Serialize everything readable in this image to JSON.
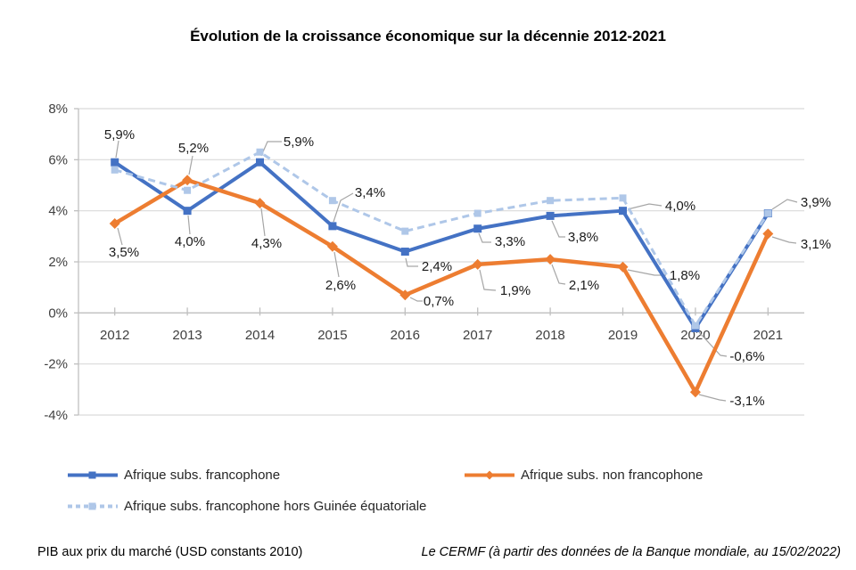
{
  "title": "Évolution de la croissance économique sur la décennie 2012-2021",
  "footnotes": {
    "left": "PIB aux prix du marché (USD constants 2010)",
    "right": "Le CERMF (à partir des données de la Banque mondiale, au 15/02/2022)"
  },
  "chart_data": {
    "type": "line",
    "title": "Évolution de la croissance économique sur la décennie 2012-2021",
    "categories": [
      "2012",
      "2013",
      "2014",
      "2015",
      "2016",
      "2017",
      "2018",
      "2019",
      "2020",
      "2021"
    ],
    "series": [
      {
        "name": "Afrique subs. francophone",
        "color": "#4472C4",
        "line_style": "solid",
        "marker": "square",
        "labeled": true,
        "values": [
          5.9,
          4.0,
          5.9,
          3.4,
          2.4,
          3.3,
          3.8,
          4.0,
          -0.6,
          3.9
        ]
      },
      {
        "name": "Afrique subs. non francophone",
        "color": "#ED7D31",
        "line_style": "solid",
        "marker": "diamond",
        "labeled": true,
        "values": [
          3.5,
          5.2,
          4.3,
          2.6,
          0.7,
          1.9,
          2.1,
          1.8,
          -3.1,
          3.1
        ]
      },
      {
        "name": "Afrique subs. francophone hors Guinée équatoriale",
        "color": "#AFC7E8",
        "line_style": "dashed",
        "marker": "square",
        "labeled": false,
        "values": [
          5.6,
          4.8,
          6.3,
          4.4,
          3.2,
          3.9,
          4.4,
          4.5,
          -0.5,
          3.9
        ]
      }
    ],
    "xlabel": "",
    "ylabel": "",
    "ylim": [
      -4,
      8
    ],
    "ytick_step": 2,
    "ytick_suffix": "%",
    "decimal_separator": ",",
    "label_format": "one_decimal_percent",
    "grid": true,
    "legend_position": "bottom",
    "colors": {
      "gridline": "#D9D9D9",
      "axis": "#BFBFBF",
      "leader_line": "#A6A6A6",
      "axis_text": "#404040",
      "label_text": "#1A1A1A"
    }
  }
}
